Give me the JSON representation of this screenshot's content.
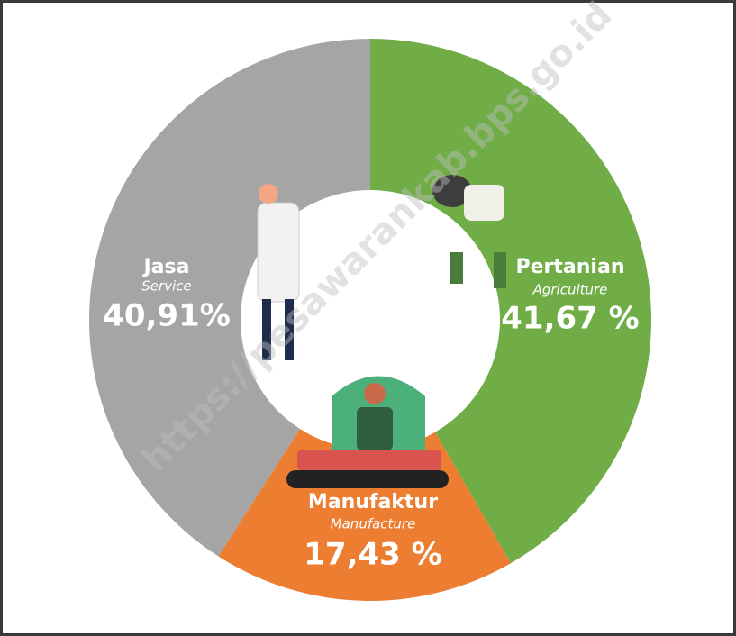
{
  "chart_data": {
    "type": "donut",
    "categories": [
      "Pertanian",
      "Manufaktur",
      "Jasa"
    ],
    "subtitles": [
      "Agriculture",
      "Manufacture",
      "Service"
    ],
    "values": [
      41.67,
      17.43,
      40.91
    ],
    "value_labels": [
      "41,67 %",
      "17,43 %",
      "40,91%"
    ],
    "colors": [
      "#70ad47",
      "#ed7d31",
      "#a5a5a5"
    ],
    "watermark": "https://pesawarankab.bps.go.id"
  }
}
